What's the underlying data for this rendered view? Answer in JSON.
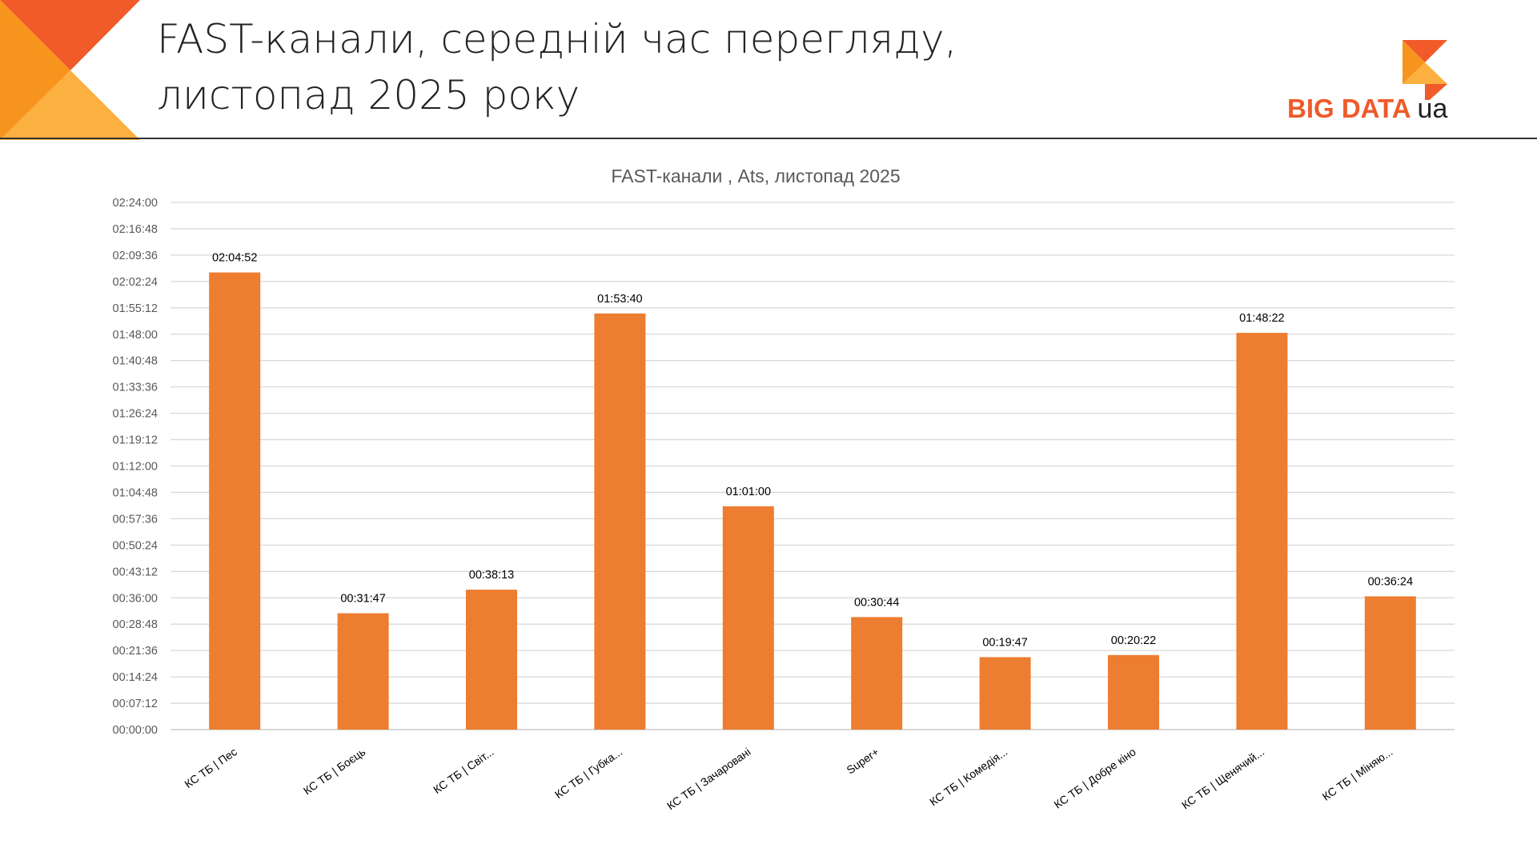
{
  "header": {
    "title_line1": "FAST-канали, середній час перегляду,",
    "title_line2": "листопад 2025 року",
    "logo_text": "BIG DATA",
    "logo_suffix": "ua"
  },
  "colors": {
    "bar": "#ed7d31",
    "grid": "#d9d9d9",
    "accent": "#ee5a2a"
  },
  "chart_data": {
    "type": "bar",
    "title": "FAST-канали , Ats, листопад 2025",
    "xlabel": "",
    "ylabel": "",
    "categories": [
      "КС ТБ | Пес",
      "КС ТБ | Боєць",
      "КС ТБ | Світ...",
      "КС ТБ | Губка...",
      "КС ТБ | Зачаровані",
      "Super+",
      "КС ТБ | Комедія...",
      "КС ТБ | Добре кіно",
      "КС ТБ | Щенячий...",
      "КС ТБ | Міняю..."
    ],
    "value_labels": [
      "02:04:52",
      "00:31:47",
      "00:38:13",
      "01:53:40",
      "01:01:00",
      "00:30:44",
      "00:19:47",
      "00:20:22",
      "01:48:22",
      "00:36:24"
    ],
    "values_seconds": [
      7492,
      1907,
      2293,
      6820,
      3660,
      1844,
      1187,
      1222,
      6502,
      2184
    ],
    "ylim_seconds": [
      0,
      8640
    ],
    "yticks": [
      "00:00:00",
      "00:07:12",
      "00:14:24",
      "00:21:36",
      "00:28:48",
      "00:36:00",
      "00:43:12",
      "00:50:24",
      "00:57:36",
      "01:04:48",
      "01:12:00",
      "01:19:12",
      "01:26:24",
      "01:33:36",
      "01:40:48",
      "01:48:00",
      "01:55:12",
      "02:02:24",
      "02:09:36",
      "02:16:48",
      "02:24:00"
    ],
    "grid": true,
    "legend": "none"
  }
}
